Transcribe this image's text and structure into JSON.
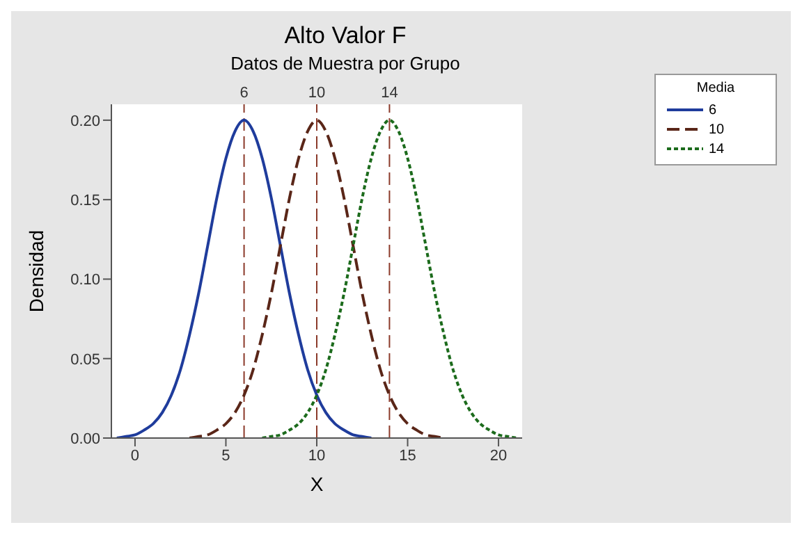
{
  "chart_data": {
    "type": "line",
    "title": "Alto Valor F",
    "subtitle": "Datos de Muestra por Grupo",
    "xlabel": "X",
    "ylabel": "Densidad",
    "legend_title": "Media",
    "legend": "top right",
    "grid": false,
    "marker": "none",
    "xlim": [
      -1.3,
      21.3
    ],
    "xticks": [
      0,
      5,
      10,
      15,
      20
    ],
    "ylim": [
      0,
      0.21
    ],
    "yticks": [
      {
        "value": 0,
        "label": "0.00"
      },
      {
        "value": 0.05,
        "label": "0.05"
      },
      {
        "value": 0.1,
        "label": "0.10"
      },
      {
        "value": 0.15,
        "label": "0.15"
      },
      {
        "value": 0.2,
        "label": "0.20"
      }
    ],
    "series": [
      {
        "name": "6",
        "color": "#1f3c9c",
        "line_style": "solid",
        "x": [
          -1,
          -0.5,
          0,
          0.5,
          1,
          1.5,
          2,
          2.5,
          3,
          3.5,
          4,
          4.5,
          5,
          5.5,
          6,
          6.5,
          7,
          7.5,
          8,
          8.5,
          9,
          9.5,
          10,
          10.5,
          11,
          11.5,
          12,
          12.5,
          13
        ],
        "values": [
          0,
          0.001,
          0.002,
          0.005,
          0.009,
          0.016,
          0.027,
          0.043,
          0.065,
          0.091,
          0.121,
          0.151,
          0.176,
          0.193,
          0.2,
          0.193,
          0.176,
          0.151,
          0.121,
          0.091,
          0.065,
          0.043,
          0.027,
          0.016,
          0.009,
          0.005,
          0.002,
          0.001,
          0
        ]
      },
      {
        "name": "10",
        "color": "#5a2618",
        "line_style": "dashed",
        "x": [
          3,
          3.5,
          4,
          4.5,
          5,
          5.5,
          6,
          6.5,
          7,
          7.5,
          8,
          8.5,
          9,
          9.5,
          10,
          10.5,
          11,
          11.5,
          12,
          12.5,
          13,
          13.5,
          14,
          14.5,
          15,
          15.5,
          16,
          16.5,
          17
        ],
        "values": [
          0,
          0.001,
          0.002,
          0.005,
          0.009,
          0.016,
          0.027,
          0.043,
          0.065,
          0.091,
          0.121,
          0.151,
          0.176,
          0.193,
          0.2,
          0.193,
          0.176,
          0.151,
          0.121,
          0.091,
          0.065,
          0.043,
          0.027,
          0.016,
          0.009,
          0.005,
          0.002,
          0.001,
          0
        ]
      },
      {
        "name": "14",
        "color": "#1c6b1c",
        "line_style": "dotted",
        "x": [
          7,
          7.5,
          8,
          8.5,
          9,
          9.5,
          10,
          10.5,
          11,
          11.5,
          12,
          12.5,
          13,
          13.5,
          14,
          14.5,
          15,
          15.5,
          16,
          16.5,
          17,
          17.5,
          18,
          18.5,
          19,
          19.5,
          20,
          20.5,
          21
        ],
        "values": [
          0,
          0.001,
          0.002,
          0.005,
          0.009,
          0.016,
          0.027,
          0.043,
          0.065,
          0.091,
          0.121,
          0.151,
          0.176,
          0.193,
          0.2,
          0.193,
          0.176,
          0.151,
          0.121,
          0.091,
          0.065,
          0.043,
          0.027,
          0.016,
          0.009,
          0.005,
          0.002,
          0.001,
          0
        ]
      }
    ],
    "ref_lines": [
      {
        "axis": "x",
        "value": 6,
        "label": "6",
        "color": "#8b3a2a",
        "line_style": "dashed"
      },
      {
        "axis": "x",
        "value": 10,
        "label": "10",
        "color": "#8b3a2a",
        "line_style": "dashed"
      },
      {
        "axis": "x",
        "value": 14,
        "label": "14",
        "color": "#8b3a2a",
        "line_style": "dashed"
      }
    ]
  }
}
